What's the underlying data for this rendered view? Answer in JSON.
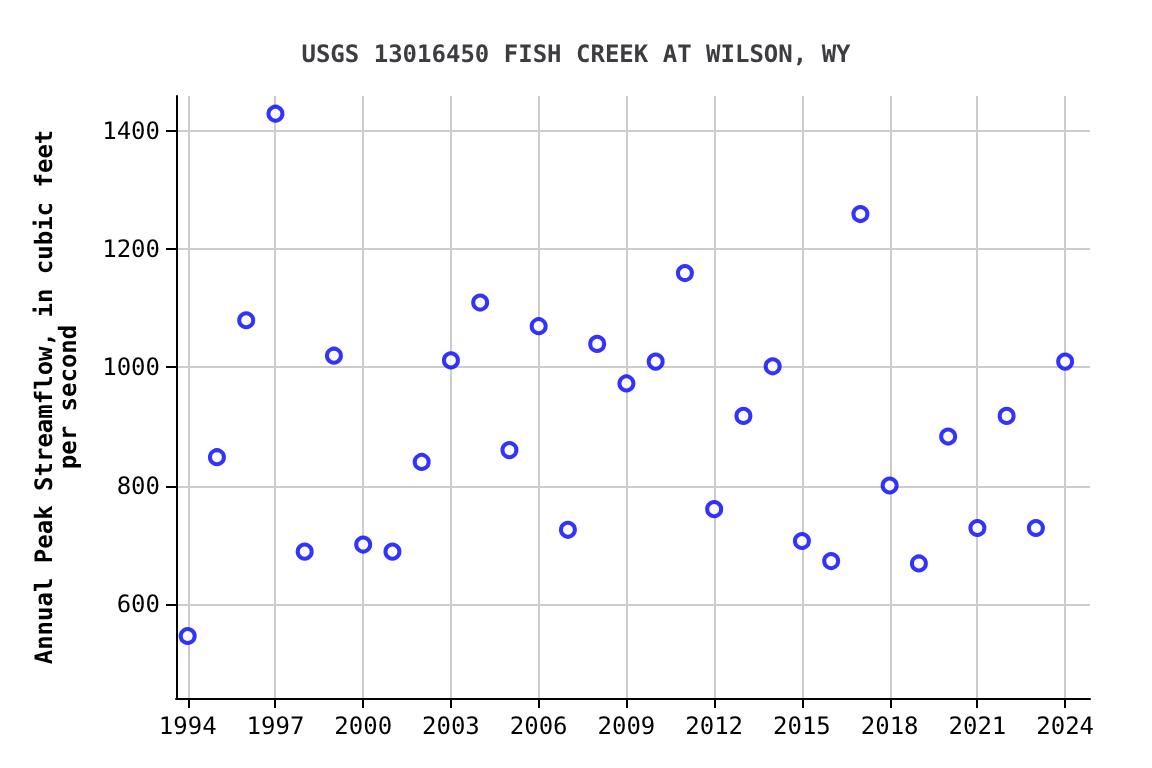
{
  "chart_data": {
    "type": "scatter",
    "title": "USGS 13016450 FISH CREEK AT WILSON, WY",
    "ylabel": "Annual Peak Streamflow, in cubic feet\nper second",
    "x": [
      1994,
      1995,
      1996,
      1997,
      1998,
      1999,
      2000,
      2001,
      2002,
      2003,
      2004,
      2005,
      2006,
      2007,
      2008,
      2009,
      2010,
      2011,
      2012,
      2013,
      2014,
      2015,
      2016,
      2017,
      2018,
      2019,
      2020,
      2021,
      2022,
      2023,
      2024
    ],
    "series": [
      {
        "color": "#0000ff",
        "values": [
          545,
          848,
          1080,
          1430,
          688,
          1020,
          700,
          688,
          840,
          1012,
          1110,
          860,
          1070,
          725,
          1040,
          973,
          1010,
          1160,
          760,
          918,
          1002,
          706,
          672,
          1260,
          800,
          668,
          883,
          728,
          918,
          728,
          1010
        ]
      }
    ],
    "xlim": [
      1993.6,
      2024.85
    ],
    "xticks": [
      1994,
      1997,
      2000,
      2003,
      2006,
      2009,
      2012,
      2015,
      2018,
      2021,
      2024
    ],
    "ylim": [
      440,
      1460
    ],
    "yticks": [
      600,
      800,
      1000,
      1200,
      1400
    ],
    "grid": true,
    "marker": "circle"
  }
}
